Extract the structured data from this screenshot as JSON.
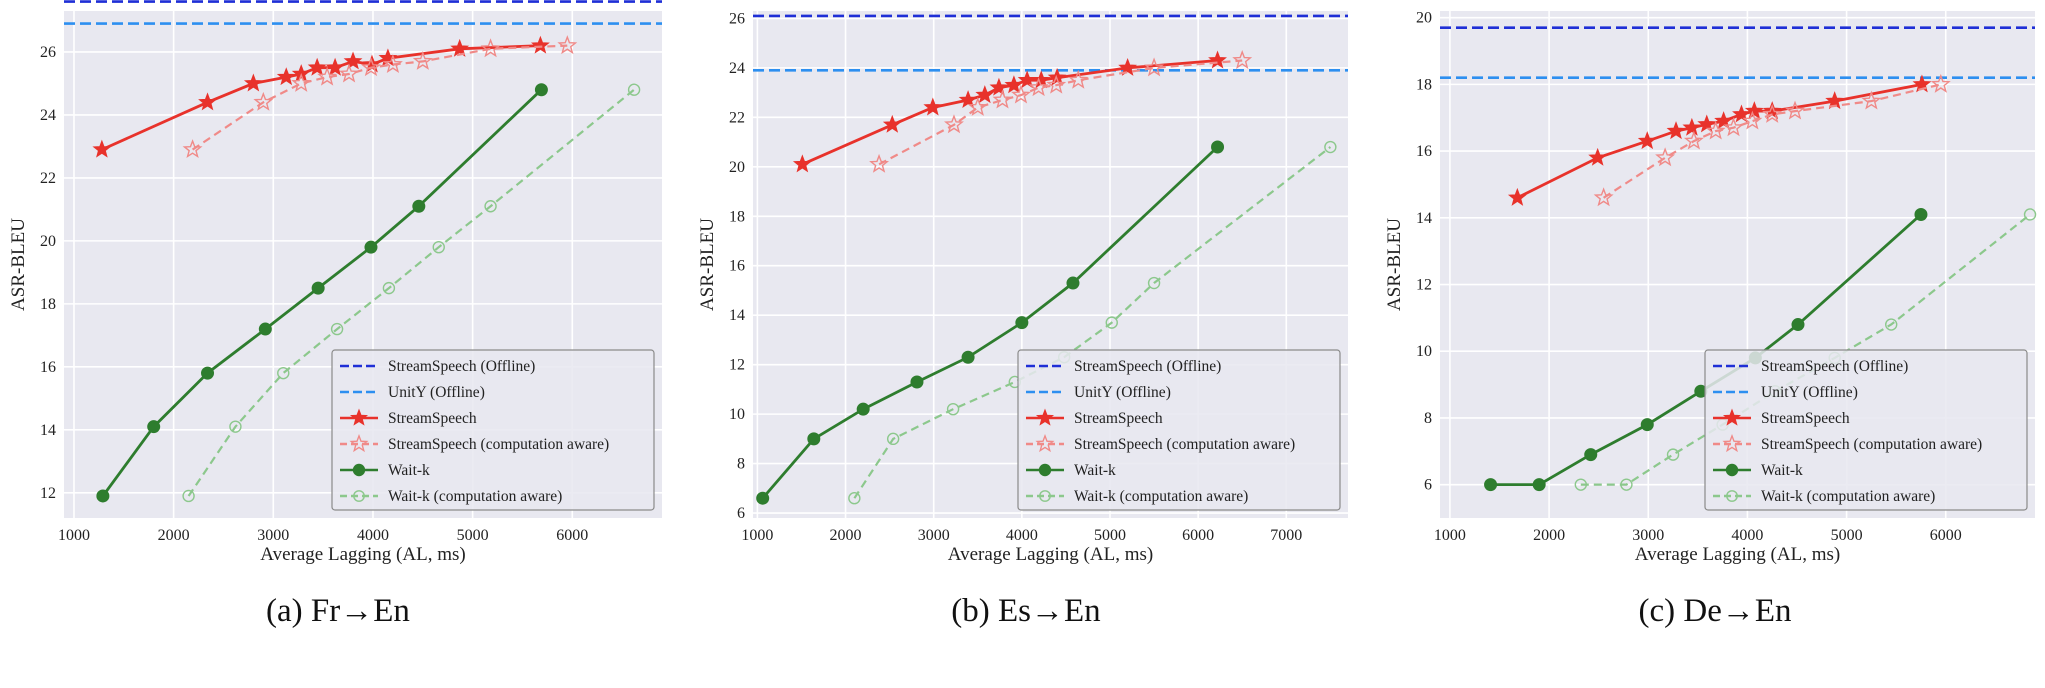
{
  "chart_data": [
    {
      "type": "line",
      "caption": "(a)  Fr→En",
      "xlabel": "Average Lagging (AL, ms)",
      "ylabel": "ASR-BLEU",
      "xlim": [
        900,
        6900
      ],
      "ylim": [
        11.2,
        27.3
      ],
      "xticks": [
        1000,
        2000,
        3000,
        4000,
        5000,
        6000
      ],
      "yticks": [
        12,
        14,
        16,
        18,
        20,
        22,
        24,
        26
      ],
      "grid": true,
      "legend_position": "lower-right",
      "series": [
        {
          "name": "StreamSpeech (Offline)",
          "kind": "hline",
          "y": 27.6,
          "color": "#1f2fd6",
          "dash": true
        },
        {
          "name": "UnitY (Offline)",
          "kind": "hline",
          "y": 26.9,
          "color": "#2d8ff0",
          "dash": true
        },
        {
          "name": "StreamSpeech",
          "marker": "star-filled",
          "color": "#e8322b",
          "dash": false,
          "x": [
            1280,
            2340,
            2800,
            3130,
            3280,
            3440,
            3620,
            3800,
            3990,
            4150,
            4870,
            5680
          ],
          "y": [
            22.9,
            24.4,
            25.0,
            25.2,
            25.3,
            25.5,
            25.5,
            25.7,
            25.6,
            25.8,
            26.1,
            26.2
          ]
        },
        {
          "name": "StreamSpeech (computation aware)",
          "marker": "star-open",
          "color": "#f08a88",
          "dash": true,
          "x": [
            2190,
            2900,
            3280,
            3540,
            3760,
            3980,
            4200,
            4500,
            5180,
            5950
          ],
          "y": [
            22.9,
            24.4,
            25.0,
            25.2,
            25.3,
            25.5,
            25.6,
            25.7,
            26.1,
            26.2
          ]
        },
        {
          "name": "Wait-k",
          "marker": "circle-filled",
          "color": "#2e7d2e",
          "dash": false,
          "x": [
            1290,
            1800,
            2340,
            2920,
            3450,
            3980,
            4460,
            5690
          ],
          "y": [
            11.9,
            14.1,
            15.8,
            17.2,
            18.5,
            19.8,
            21.1,
            24.8
          ]
        },
        {
          "name": "Wait-k (computation aware)",
          "marker": "circle-open",
          "color": "#8cc88c",
          "dash": true,
          "x": [
            2150,
            2620,
            3100,
            3640,
            4160,
            4660,
            5180,
            6620
          ],
          "y": [
            11.9,
            14.1,
            15.8,
            17.2,
            18.5,
            19.8,
            21.1,
            24.8
          ]
        }
      ]
    },
    {
      "type": "line",
      "caption": "(b)  Es→En",
      "xlabel": "Average Lagging (AL, ms)",
      "ylabel": "ASR-BLEU",
      "xlim": [
        950,
        7700
      ],
      "ylim": [
        5.8,
        26.3
      ],
      "xticks": [
        1000,
        2000,
        3000,
        4000,
        5000,
        6000,
        7000
      ],
      "yticks": [
        6,
        8,
        10,
        12,
        14,
        16,
        18,
        20,
        22,
        24,
        26
      ],
      "grid": true,
      "legend_position": "lower-right",
      "series": [
        {
          "name": "StreamSpeech (Offline)",
          "kind": "hline",
          "y": 26.1,
          "color": "#1f2fd6",
          "dash": true
        },
        {
          "name": "UnitY (Offline)",
          "kind": "hline",
          "y": 23.9,
          "color": "#2d8ff0",
          "dash": true
        },
        {
          "name": "StreamSpeech",
          "marker": "star-filled",
          "color": "#e8322b",
          "dash": false,
          "x": [
            1510,
            2530,
            2990,
            3390,
            3580,
            3740,
            3910,
            4060,
            4220,
            4400,
            5200,
            6220
          ],
          "y": [
            20.1,
            21.7,
            22.4,
            22.7,
            22.9,
            23.2,
            23.3,
            23.5,
            23.5,
            23.6,
            24.0,
            24.3
          ]
        },
        {
          "name": "StreamSpeech (computation aware)",
          "marker": "star-open",
          "color": "#f08a88",
          "dash": true,
          "x": [
            2380,
            3230,
            3500,
            3780,
            3990,
            4190,
            4390,
            4640,
            5500,
            6500
          ],
          "y": [
            20.1,
            21.7,
            22.4,
            22.7,
            22.9,
            23.2,
            23.3,
            23.5,
            24.0,
            24.3
          ]
        },
        {
          "name": "Wait-k",
          "marker": "circle-filled",
          "color": "#2e7d2e",
          "dash": false,
          "x": [
            1060,
            1640,
            2200,
            2810,
            3390,
            4000,
            4580,
            6220
          ],
          "y": [
            6.6,
            9.0,
            10.2,
            11.3,
            12.3,
            13.7,
            15.3,
            20.8
          ]
        },
        {
          "name": "Wait-k (computation aware)",
          "marker": "circle-open",
          "color": "#8cc88c",
          "dash": true,
          "x": [
            2100,
            2540,
            3220,
            3920,
            4480,
            5020,
            5500,
            7500
          ],
          "y": [
            6.6,
            9.0,
            10.2,
            11.3,
            12.3,
            13.7,
            15.3,
            20.8
          ]
        }
      ]
    },
    {
      "type": "line",
      "caption": "(c)  De→En",
      "xlabel": "Average Lagging (AL, ms)",
      "ylabel": "ASR-BLEU",
      "xlim": [
        900,
        6900
      ],
      "ylim": [
        5.0,
        20.2
      ],
      "xticks": [
        1000,
        2000,
        3000,
        4000,
        5000,
        6000
      ],
      "yticks": [
        6,
        8,
        10,
        12,
        14,
        16,
        18,
        20
      ],
      "grid": true,
      "legend_position": "lower-right",
      "series": [
        {
          "name": "StreamSpeech (Offline)",
          "kind": "hline",
          "y": 19.7,
          "color": "#1f2fd6",
          "dash": true
        },
        {
          "name": "UnitY (Offline)",
          "kind": "hline",
          "y": 18.2,
          "color": "#2d8ff0",
          "dash": true
        },
        {
          "name": "StreamSpeech",
          "marker": "star-filled",
          "color": "#e8322b",
          "dash": false,
          "x": [
            1680,
            2490,
            2990,
            3280,
            3440,
            3590,
            3760,
            3940,
            4070,
            4250,
            4880,
            5760
          ],
          "y": [
            14.6,
            15.8,
            16.3,
            16.6,
            16.7,
            16.8,
            16.9,
            17.1,
            17.2,
            17.2,
            17.5,
            18.0
          ]
        },
        {
          "name": "StreamSpeech (computation aware)",
          "marker": "star-open",
          "color": "#f08a88",
          "dash": true,
          "x": [
            2550,
            3170,
            3460,
            3680,
            3860,
            4050,
            4250,
            4480,
            5250,
            5950
          ],
          "y": [
            14.6,
            15.8,
            16.3,
            16.6,
            16.7,
            16.9,
            17.1,
            17.2,
            17.5,
            18.0
          ]
        },
        {
          "name": "Wait-k",
          "marker": "circle-filled",
          "color": "#2e7d2e",
          "dash": false,
          "x": [
            1410,
            1900,
            2420,
            2990,
            3530,
            4080,
            4510,
            5750
          ],
          "y": [
            6.0,
            6.0,
            6.9,
            7.8,
            8.8,
            9.8,
            10.8,
            14.1
          ]
        },
        {
          "name": "Wait-k (computation aware)",
          "marker": "circle-open",
          "color": "#8cc88c",
          "dash": true,
          "x": [
            2320,
            2780,
            3250,
            3750,
            4280,
            4880,
            5450,
            6850
          ],
          "y": [
            6.0,
            6.0,
            6.9,
            7.8,
            8.8,
            9.8,
            10.8,
            14.1
          ]
        }
      ]
    }
  ]
}
